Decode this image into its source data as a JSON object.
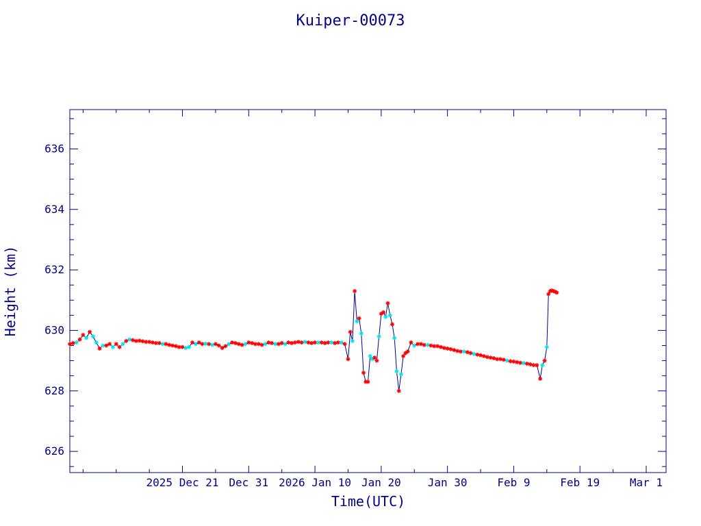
{
  "chart_data": {
    "type": "line",
    "title": "Kuiper-00073",
    "xlabel": "Time(UTC)",
    "ylabel": "Height (km)",
    "x_is_date": true,
    "xlim": [
      "2025-12-04",
      "2026-03-04"
    ],
    "ylim": [
      625.3,
      637.3
    ],
    "x_ticks": [
      {
        "label": "2025 Dec 21",
        "date": "2025-12-21"
      },
      {
        "label": "Dec 31",
        "date": "2025-12-31"
      },
      {
        "label": "2026 Jan 10",
        "date": "2026-01-10"
      },
      {
        "label": "Jan 20",
        "date": "2026-01-20"
      },
      {
        "label": "Jan 30",
        "date": "2026-01-30"
      },
      {
        "label": "Feb  9",
        "date": "2026-02-09"
      },
      {
        "label": "Feb 19",
        "date": "2026-02-19"
      },
      {
        "label": "Mar  1",
        "date": "2026-03-01"
      }
    ],
    "y_ticks": [
      626,
      628,
      630,
      632,
      634,
      636
    ],
    "colors": {
      "axes": "#00008b",
      "line": "#00008b",
      "red_markers": "#ff0000",
      "cyan_markers": "#00e5ee"
    },
    "series": [
      {
        "marker_color": "mixed red/cyan",
        "points": [
          {
            "x": "2025-12-04T00:00",
            "y": 629.55,
            "m": "r"
          },
          {
            "x": "2025-12-04T12:00",
            "y": 629.58,
            "m": "r"
          },
          {
            "x": "2025-12-05T00:00",
            "y": 629.6,
            "m": "c"
          },
          {
            "x": "2025-12-05T12:00",
            "y": 629.7,
            "m": "r"
          },
          {
            "x": "2025-12-06T00:00",
            "y": 629.85,
            "m": "r"
          },
          {
            "x": "2025-12-06T12:00",
            "y": 629.75,
            "m": "c"
          },
          {
            "x": "2025-12-07T00:00",
            "y": 629.95,
            "m": "r"
          },
          {
            "x": "2025-12-07T12:00",
            "y": 629.8,
            "m": "c"
          },
          {
            "x": "2025-12-08T00:00",
            "y": 629.6,
            "m": "c"
          },
          {
            "x": "2025-12-08T12:00",
            "y": 629.4,
            "m": "r"
          },
          {
            "x": "2025-12-09T00:00",
            "y": 629.5,
            "m": "c"
          },
          {
            "x": "2025-12-09T12:00",
            "y": 629.5,
            "m": "r"
          },
          {
            "x": "2025-12-10T00:00",
            "y": 629.55,
            "m": "r"
          },
          {
            "x": "2025-12-10T12:00",
            "y": 629.45,
            "m": "c"
          },
          {
            "x": "2025-12-11T00:00",
            "y": 629.55,
            "m": "r"
          },
          {
            "x": "2025-12-11T12:00",
            "y": 629.45,
            "m": "r"
          },
          {
            "x": "2025-12-12T00:00",
            "y": 629.55,
            "m": "c"
          },
          {
            "x": "2025-12-12T12:00",
            "y": 629.65,
            "m": "r"
          },
          {
            "x": "2025-12-13T00:00",
            "y": 629.7,
            "m": "c"
          },
          {
            "x": "2025-12-13T12:00",
            "y": 629.68,
            "m": "r"
          },
          {
            "x": "2025-12-14T00:00",
            "y": 629.65,
            "m": "r"
          },
          {
            "x": "2025-12-14T12:00",
            "y": 629.66,
            "m": "r"
          },
          {
            "x": "2025-12-15T00:00",
            "y": 629.64,
            "m": "r"
          },
          {
            "x": "2025-12-15T12:00",
            "y": 629.62,
            "m": "r"
          },
          {
            "x": "2025-12-16T00:00",
            "y": 629.62,
            "m": "r"
          },
          {
            "x": "2025-12-16T12:00",
            "y": 629.6,
            "m": "r"
          },
          {
            "x": "2025-12-17T00:00",
            "y": 629.58,
            "m": "r"
          },
          {
            "x": "2025-12-17T12:00",
            "y": 629.58,
            "m": "r"
          },
          {
            "x": "2025-12-18T00:00",
            "y": 629.55,
            "m": "c"
          },
          {
            "x": "2025-12-18T12:00",
            "y": 629.55,
            "m": "r"
          },
          {
            "x": "2025-12-19T00:00",
            "y": 629.52,
            "m": "r"
          },
          {
            "x": "2025-12-19T12:00",
            "y": 629.5,
            "m": "r"
          },
          {
            "x": "2025-12-20T00:00",
            "y": 629.48,
            "m": "r"
          },
          {
            "x": "2025-12-20T12:00",
            "y": 629.45,
            "m": "r"
          },
          {
            "x": "2025-12-21T00:00",
            "y": 629.45,
            "m": "r"
          },
          {
            "x": "2025-12-21T12:00",
            "y": 629.42,
            "m": "c"
          },
          {
            "x": "2025-12-22T00:00",
            "y": 629.45,
            "m": "c"
          },
          {
            "x": "2025-12-22T12:00",
            "y": 629.6,
            "m": "r"
          },
          {
            "x": "2025-12-23T00:00",
            "y": 629.55,
            "m": "c"
          },
          {
            "x": "2025-12-23T12:00",
            "y": 629.6,
            "m": "r"
          },
          {
            "x": "2025-12-24T00:00",
            "y": 629.55,
            "m": "r"
          },
          {
            "x": "2025-12-24T12:00",
            "y": 629.56,
            "m": "c"
          },
          {
            "x": "2025-12-25T00:00",
            "y": 629.55,
            "m": "r"
          },
          {
            "x": "2025-12-25T12:00",
            "y": 629.52,
            "m": "c"
          },
          {
            "x": "2025-12-26T00:00",
            "y": 629.55,
            "m": "r"
          },
          {
            "x": "2025-12-26T12:00",
            "y": 629.5,
            "m": "r"
          },
          {
            "x": "2025-12-27T00:00",
            "y": 629.42,
            "m": "r"
          },
          {
            "x": "2025-12-27T12:00",
            "y": 629.48,
            "m": "r"
          },
          {
            "x": "2025-12-28T00:00",
            "y": 629.55,
            "m": "c"
          },
          {
            "x": "2025-12-28T12:00",
            "y": 629.6,
            "m": "r"
          },
          {
            "x": "2025-12-29T00:00",
            "y": 629.58,
            "m": "r"
          },
          {
            "x": "2025-12-29T12:00",
            "y": 629.55,
            "m": "r"
          },
          {
            "x": "2025-12-30T00:00",
            "y": 629.52,
            "m": "r"
          },
          {
            "x": "2025-12-30T12:00",
            "y": 629.55,
            "m": "c"
          },
          {
            "x": "2025-12-31T00:00",
            "y": 629.6,
            "m": "r"
          },
          {
            "x": "2025-12-31T12:00",
            "y": 629.58,
            "m": "r"
          },
          {
            "x": "2026-01-01T00:00",
            "y": 629.55,
            "m": "r"
          },
          {
            "x": "2026-01-01T12:00",
            "y": 629.55,
            "m": "r"
          },
          {
            "x": "2026-01-02T00:00",
            "y": 629.52,
            "m": "r"
          },
          {
            "x": "2026-01-02T12:00",
            "y": 629.55,
            "m": "c"
          },
          {
            "x": "2026-01-03T00:00",
            "y": 629.6,
            "m": "r"
          },
          {
            "x": "2026-01-03T12:00",
            "y": 629.58,
            "m": "r"
          },
          {
            "x": "2026-01-04T00:00",
            "y": 629.55,
            "m": "c"
          },
          {
            "x": "2026-01-04T12:00",
            "y": 629.55,
            "m": "r"
          },
          {
            "x": "2026-01-05T00:00",
            "y": 629.58,
            "m": "r"
          },
          {
            "x": "2026-01-05T12:00",
            "y": 629.55,
            "m": "c"
          },
          {
            "x": "2026-01-06T00:00",
            "y": 629.6,
            "m": "r"
          },
          {
            "x": "2026-01-06T12:00",
            "y": 629.58,
            "m": "r"
          },
          {
            "x": "2026-01-07T00:00",
            "y": 629.6,
            "m": "r"
          },
          {
            "x": "2026-01-07T12:00",
            "y": 629.62,
            "m": "r"
          },
          {
            "x": "2026-01-08T00:00",
            "y": 629.6,
            "m": "r"
          },
          {
            "x": "2026-01-08T12:00",
            "y": 629.62,
            "m": "c"
          },
          {
            "x": "2026-01-09T00:00",
            "y": 629.6,
            "m": "r"
          },
          {
            "x": "2026-01-09T12:00",
            "y": 629.58,
            "m": "r"
          },
          {
            "x": "2026-01-10T00:00",
            "y": 629.6,
            "m": "r"
          },
          {
            "x": "2026-01-10T12:00",
            "y": 629.6,
            "m": "c"
          },
          {
            "x": "2026-01-11T00:00",
            "y": 629.6,
            "m": "r"
          },
          {
            "x": "2026-01-11T12:00",
            "y": 629.58,
            "m": "r"
          },
          {
            "x": "2026-01-12T00:00",
            "y": 629.6,
            "m": "r"
          },
          {
            "x": "2026-01-12T12:00",
            "y": 629.6,
            "m": "c"
          },
          {
            "x": "2026-01-13T00:00",
            "y": 629.58,
            "m": "r"
          },
          {
            "x": "2026-01-13T12:00",
            "y": 629.6,
            "m": "r"
          },
          {
            "x": "2026-01-14T00:00",
            "y": 629.6,
            "m": "c"
          },
          {
            "x": "2026-01-14T12:00",
            "y": 629.55,
            "m": "r"
          },
          {
            "x": "2026-01-15T00:00",
            "y": 629.05,
            "m": "r"
          },
          {
            "x": "2026-01-15T08:00",
            "y": 629.95,
            "m": "r"
          },
          {
            "x": "2026-01-15T16:00",
            "y": 629.65,
            "m": "c"
          },
          {
            "x": "2026-01-16T00:00",
            "y": 631.3,
            "m": "r"
          },
          {
            "x": "2026-01-16T08:00",
            "y": 630.3,
            "m": "c"
          },
          {
            "x": "2026-01-16T16:00",
            "y": 630.4,
            "m": "r"
          },
          {
            "x": "2026-01-17T00:00",
            "y": 629.9,
            "m": "c"
          },
          {
            "x": "2026-01-17T08:00",
            "y": 628.6,
            "m": "r"
          },
          {
            "x": "2026-01-17T16:00",
            "y": 628.3,
            "m": "r"
          },
          {
            "x": "2026-01-18T00:00",
            "y": 628.3,
            "m": "r"
          },
          {
            "x": "2026-01-18T08:00",
            "y": 629.15,
            "m": "c"
          },
          {
            "x": "2026-01-18T16:00",
            "y": 629.05,
            "m": "c"
          },
          {
            "x": "2026-01-19T00:00",
            "y": 629.1,
            "m": "r"
          },
          {
            "x": "2026-01-19T08:00",
            "y": 629.0,
            "m": "r"
          },
          {
            "x": "2026-01-19T16:00",
            "y": 629.8,
            "m": "c"
          },
          {
            "x": "2026-01-20T00:00",
            "y": 630.55,
            "m": "r"
          },
          {
            "x": "2026-01-20T08:00",
            "y": 630.6,
            "m": "r"
          },
          {
            "x": "2026-01-20T16:00",
            "y": 630.45,
            "m": "c"
          },
          {
            "x": "2026-01-21T00:00",
            "y": 630.9,
            "m": "r"
          },
          {
            "x": "2026-01-21T08:00",
            "y": 630.5,
            "m": "c"
          },
          {
            "x": "2026-01-21T16:00",
            "y": 630.2,
            "m": "r"
          },
          {
            "x": "2026-01-22T00:00",
            "y": 629.75,
            "m": "c"
          },
          {
            "x": "2026-01-22T08:00",
            "y": 628.65,
            "m": "c"
          },
          {
            "x": "2026-01-22T16:00",
            "y": 628.0,
            "m": "r"
          },
          {
            "x": "2026-01-23T00:00",
            "y": 628.55,
            "m": "c"
          },
          {
            "x": "2026-01-23T08:00",
            "y": 629.15,
            "m": "r"
          },
          {
            "x": "2026-01-23T16:00",
            "y": 629.25,
            "m": "r"
          },
          {
            "x": "2026-01-24T00:00",
            "y": 629.3,
            "m": "r"
          },
          {
            "x": "2026-01-24T12:00",
            "y": 629.6,
            "m": "r"
          },
          {
            "x": "2026-01-25T00:00",
            "y": 629.5,
            "m": "c"
          },
          {
            "x": "2026-01-25T12:00",
            "y": 629.55,
            "m": "r"
          },
          {
            "x": "2026-01-26T00:00",
            "y": 629.55,
            "m": "r"
          },
          {
            "x": "2026-01-26T12:00",
            "y": 629.52,
            "m": "r"
          },
          {
            "x": "2026-01-27T00:00",
            "y": 629.52,
            "m": "c"
          },
          {
            "x": "2026-01-27T12:00",
            "y": 629.5,
            "m": "r"
          },
          {
            "x": "2026-01-28T00:00",
            "y": 629.48,
            "m": "r"
          },
          {
            "x": "2026-01-28T12:00",
            "y": 629.48,
            "m": "r"
          },
          {
            "x": "2026-01-29T00:00",
            "y": 629.45,
            "m": "r"
          },
          {
            "x": "2026-01-29T12:00",
            "y": 629.42,
            "m": "r"
          },
          {
            "x": "2026-01-30T00:00",
            "y": 629.4,
            "m": "r"
          },
          {
            "x": "2026-01-30T12:00",
            "y": 629.38,
            "m": "r"
          },
          {
            "x": "2026-01-31T00:00",
            "y": 629.35,
            "m": "r"
          },
          {
            "x": "2026-01-31T12:00",
            "y": 629.32,
            "m": "r"
          },
          {
            "x": "2026-02-01T00:00",
            "y": 629.3,
            "m": "r"
          },
          {
            "x": "2026-02-01T12:00",
            "y": 629.3,
            "m": "c"
          },
          {
            "x": "2026-02-02T00:00",
            "y": 629.28,
            "m": "r"
          },
          {
            "x": "2026-02-02T12:00",
            "y": 629.25,
            "m": "r"
          },
          {
            "x": "2026-02-03T00:00",
            "y": 629.22,
            "m": "c"
          },
          {
            "x": "2026-02-03T12:00",
            "y": 629.2,
            "m": "r"
          },
          {
            "x": "2026-02-04T00:00",
            "y": 629.18,
            "m": "r"
          },
          {
            "x": "2026-02-04T12:00",
            "y": 629.15,
            "m": "r"
          },
          {
            "x": "2026-02-05T00:00",
            "y": 629.12,
            "m": "r"
          },
          {
            "x": "2026-02-05T12:00",
            "y": 629.1,
            "m": "r"
          },
          {
            "x": "2026-02-06T00:00",
            "y": 629.08,
            "m": "r"
          },
          {
            "x": "2026-02-06T12:00",
            "y": 629.05,
            "m": "r"
          },
          {
            "x": "2026-02-07T00:00",
            "y": 629.05,
            "m": "r"
          },
          {
            "x": "2026-02-07T12:00",
            "y": 629.03,
            "m": "r"
          },
          {
            "x": "2026-02-08T00:00",
            "y": 629.0,
            "m": "c"
          },
          {
            "x": "2026-02-08T12:00",
            "y": 628.98,
            "m": "r"
          },
          {
            "x": "2026-02-09T00:00",
            "y": 628.97,
            "m": "r"
          },
          {
            "x": "2026-02-09T12:00",
            "y": 628.95,
            "m": "r"
          },
          {
            "x": "2026-02-10T00:00",
            "y": 628.93,
            "m": "r"
          },
          {
            "x": "2026-02-10T12:00",
            "y": 628.92,
            "m": "c"
          },
          {
            "x": "2026-02-11T00:00",
            "y": 628.9,
            "m": "r"
          },
          {
            "x": "2026-02-11T12:00",
            "y": 628.88,
            "m": "r"
          },
          {
            "x": "2026-02-12T00:00",
            "y": 628.85,
            "m": "r"
          },
          {
            "x": "2026-02-12T12:00",
            "y": 628.85,
            "m": "r"
          },
          {
            "x": "2026-02-13T00:00",
            "y": 628.4,
            "m": "r"
          },
          {
            "x": "2026-02-13T08:00",
            "y": 628.85,
            "m": "c"
          },
          {
            "x": "2026-02-13T16:00",
            "y": 629.0,
            "m": "r"
          },
          {
            "x": "2026-02-14T00:00",
            "y": 629.45,
            "m": "c"
          },
          {
            "x": "2026-02-14T06:00",
            "y": 631.2,
            "m": "r"
          },
          {
            "x": "2026-02-14T12:00",
            "y": 631.3,
            "m": "r"
          },
          {
            "x": "2026-02-14T18:00",
            "y": 631.32,
            "m": "r"
          },
          {
            "x": "2026-02-15T00:00",
            "y": 631.3,
            "m": "r"
          },
          {
            "x": "2026-02-15T06:00",
            "y": 631.28,
            "m": "r"
          },
          {
            "x": "2026-02-15T12:00",
            "y": 631.25,
            "m": "r"
          }
        ]
      }
    ]
  }
}
